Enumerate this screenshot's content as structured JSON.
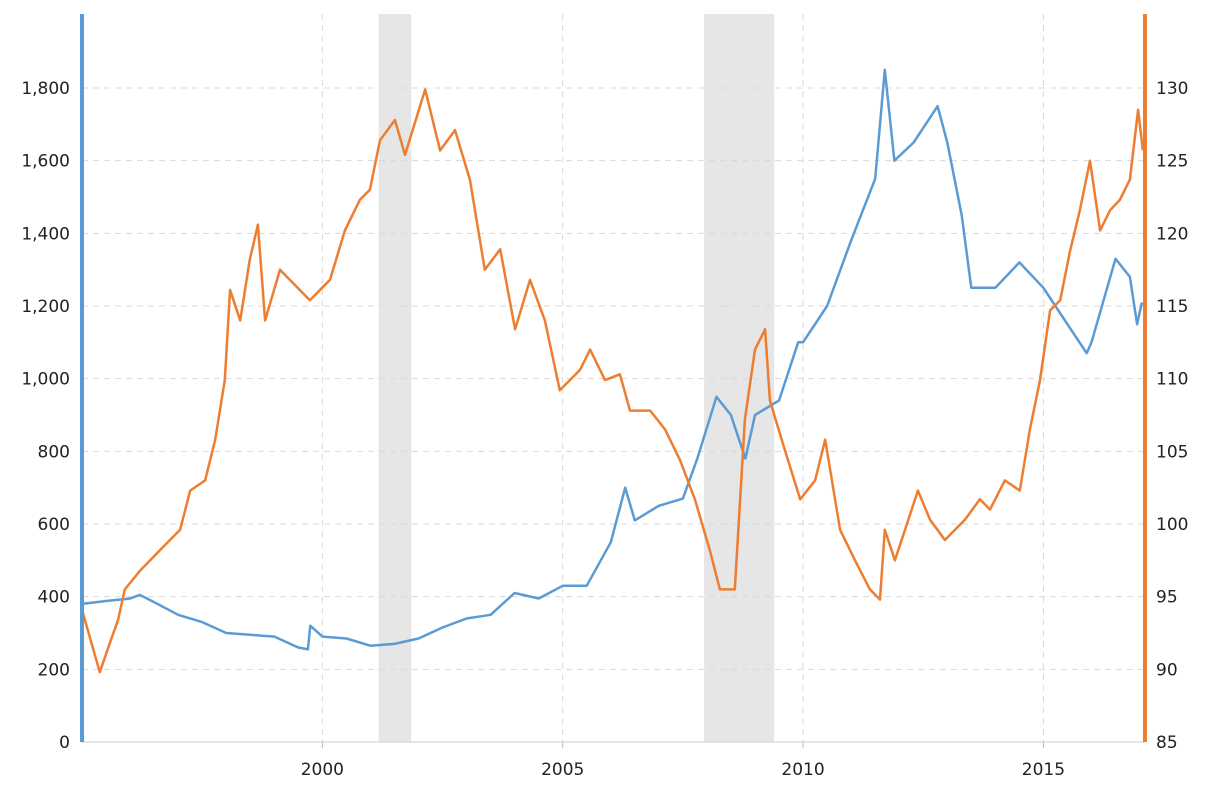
{
  "chart_data": {
    "type": "line",
    "title": "",
    "xlabel": "",
    "ylabel": "",
    "y2label": "",
    "xlim": [
      1995.0,
      2017.1
    ],
    "ylim": [
      0,
      2000
    ],
    "y2lim": [
      85,
      135
    ],
    "x_ticks": [
      2000,
      2005,
      2010,
      2015
    ],
    "x_tick_labels": [
      "2000",
      "2005",
      "2010",
      "2015"
    ],
    "y_ticks": [
      0,
      200,
      400,
      600,
      800,
      1000,
      1200,
      1400,
      1600,
      1800
    ],
    "y_tick_labels": [
      "0",
      "200",
      "400",
      "600",
      "800",
      "1,000",
      "1,200",
      "1,400",
      "1,600",
      "1,800"
    ],
    "y2_ticks": [
      85,
      90,
      95,
      100,
      105,
      110,
      115,
      120,
      125,
      130
    ],
    "y2_tick_labels": [
      "85",
      "90",
      "95",
      "100",
      "105",
      "110",
      "115",
      "120",
      "125",
      "130"
    ],
    "grid": true,
    "shaded_periods": [
      [
        2001.17,
        2001.85
      ],
      [
        2007.94,
        2009.4
      ]
    ],
    "series": [
      {
        "axis": "left",
        "color": "#5b9bd5",
        "x": [
          1995.0,
          1995.5,
          1996.0,
          1996.2,
          1996.5,
          1997.0,
          1997.5,
          1998.0,
          1998.5,
          1999.0,
          1999.5,
          1999.7,
          1999.75,
          2000.0,
          2000.5,
          2001.0,
          2001.5,
          2002.0,
          2002.5,
          2003.0,
          2003.5,
          2004.0,
          2004.5,
          2005.0,
          2005.5,
          2006.0,
          2006.3,
          2006.5,
          2007.0,
          2007.5,
          2007.8,
          2008.2,
          2008.5,
          2008.8,
          2009.0,
          2009.5,
          2009.9,
          2010.0,
          2010.5,
          2011.0,
          2011.5,
          2011.7,
          2011.9,
          2012.3,
          2012.8,
          2013.0,
          2013.3,
          2013.5,
          2014.0,
          2014.5,
          2015.0,
          2015.5,
          2015.9,
          2016.0,
          2016.5,
          2016.8,
          2016.95,
          2017.05
        ],
        "y": [
          380,
          388,
          395,
          405,
          385,
          350,
          330,
          300,
          295,
          290,
          260,
          255,
          320,
          290,
          285,
          265,
          270,
          285,
          315,
          340,
          350,
          410,
          395,
          430,
          430,
          550,
          700,
          610,
          650,
          670,
          780,
          950,
          900,
          780,
          900,
          940,
          1100,
          1100,
          1200,
          1380,
          1550,
          1850,
          1600,
          1650,
          1750,
          1650,
          1450,
          1250,
          1250,
          1320,
          1250,
          1150,
          1070,
          1100,
          1330,
          1280,
          1150,
          1210
        ]
      },
      {
        "axis": "right",
        "color": "#ed7d31",
        "x": [
          1995.0,
          1995.37,
          1995.6,
          1995.75,
          1995.89,
          1996.21,
          1996.62,
          1997.04,
          1997.25,
          1997.56,
          1997.77,
          1997.97,
          1998.08,
          1998.29,
          1998.49,
          1998.66,
          1998.81,
          1999.12,
          1999.53,
          1999.74,
          2000.16,
          2000.47,
          2000.78,
          2000.99,
          2001.2,
          2001.51,
          2001.72,
          2002.14,
          2002.45,
          2002.76,
          2003.07,
          2003.38,
          2003.7,
          2004.01,
          2004.32,
          2004.63,
          2004.94,
          2005.36,
          2005.57,
          2005.88,
          2006.19,
          2006.4,
          2006.82,
          2007.13,
          2007.44,
          2007.75,
          2008.06,
          2008.27,
          2008.58,
          2008.79,
          2009.0,
          2009.21,
          2009.31,
          2009.62,
          2009.94,
          2010.25,
          2010.46,
          2010.77,
          2011.08,
          2011.39,
          2011.6,
          2011.7,
          2011.91,
          2012.12,
          2012.39,
          2012.64,
          2012.95,
          2013.37,
          2013.68,
          2013.89,
          2014.2,
          2014.51,
          2014.72,
          2014.93,
          2015.14,
          2015.35,
          2015.55,
          2015.76,
          2015.97,
          2016.18,
          2016.39,
          2016.59,
          2016.8,
          2016.97,
          2017.07
        ],
        "y": [
          94.1,
          89.8,
          92,
          93.4,
          95.5,
          96.8,
          98.2,
          99.6,
          102.3,
          103,
          105.8,
          109.9,
          116.1,
          114,
          118.2,
          120.6,
          114,
          117.5,
          116.1,
          115.4,
          116.8,
          120.2,
          122.3,
          123,
          126.4,
          127.8,
          125.4,
          129.9,
          125.7,
          127.1,
          123.7,
          117.5,
          118.9,
          113.4,
          116.8,
          114,
          109.2,
          110.6,
          112,
          109.9,
          110.3,
          107.8,
          107.8,
          106.5,
          104.4,
          101.7,
          98.2,
          95.5,
          95.5,
          107.2,
          112,
          113.4,
          108.5,
          105.1,
          101.7,
          103,
          105.8,
          99.6,
          97.5,
          95.5,
          94.8,
          99.6,
          97.5,
          99.6,
          102.3,
          100.3,
          98.9,
          100.3,
          101.7,
          101,
          103,
          102.3,
          106.5,
          109.9,
          114.7,
          115.4,
          118.7,
          121.6,
          125,
          120.2,
          121.6,
          122.3,
          123.7,
          128.5,
          125.7
        ]
      }
    ]
  }
}
